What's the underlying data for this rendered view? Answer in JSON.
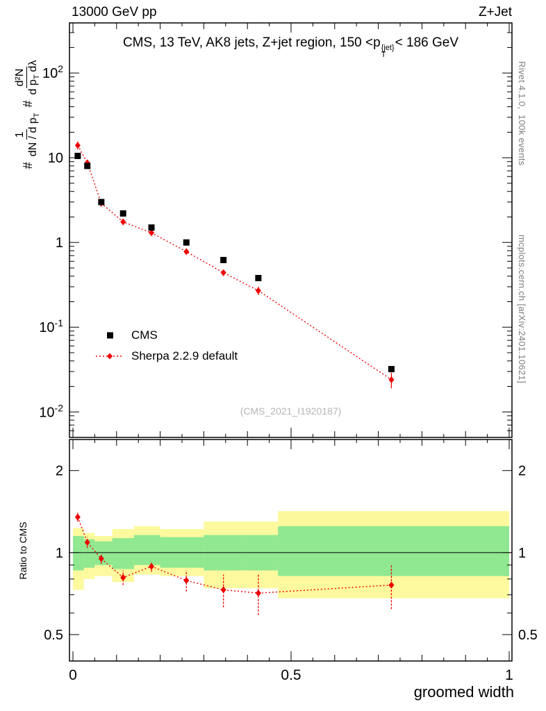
{
  "header": {
    "left": "13000 GeV pp",
    "right": "Z+Jet"
  },
  "main_panel": {
    "title": {
      "pre": "CMS, 13 TeV, AK8 jets, Z+jet region, 150 <p",
      "sup": "{jet}",
      "sub": "T",
      "post": "< 186 GeV"
    },
    "ylabel": {
      "hash1": "#",
      "f1_num": "1",
      "f1_den_pre": "dN / d p",
      "f1_den_sub": "T",
      "hash2": "#",
      "f2_num": "d²N",
      "f2_den_pre": "d p",
      "f2_den_sub": "T",
      "f2_den_post": "dλ"
    },
    "watermark": "(CMS_2021_I1920187)",
    "legend": [
      {
        "label": "CMS",
        "marker": "black-square"
      },
      {
        "label": "Sherpa 2.2.9 default",
        "marker": "red-diamond-dotted-line"
      }
    ]
  },
  "ratio_panel": {
    "ylabel": "Ratio to CMS"
  },
  "xaxis": {
    "label": "groomed width"
  },
  "side_notes": {
    "top": "Rivet 4.1.0,  100k events",
    "bottom": "mcplots.cern.ch [arXiv:2401.10621]"
  },
  "colors": {
    "cms": "#000000",
    "sherpa": "#ee0000",
    "band_yellow": "#fcf99e",
    "band_green": "#90e890"
  },
  "chart_data": {
    "type": "line",
    "title": "CMS, 13 TeV, AK8 jets, Z+jet region, 150 < pT^{jet} < 186 GeV",
    "xlabel": "groomed width",
    "xlim": [
      0,
      1
    ],
    "xticks": [
      {
        "v": 0,
        "label": "0"
      },
      {
        "v": 0.5,
        "label": "0.5"
      },
      {
        "v": 1,
        "label": "1"
      }
    ],
    "main": {
      "yscale": "log",
      "ylim": [
        0.005,
        390
      ],
      "yticks": [
        {
          "v": 100,
          "base": "10",
          "exp": "2"
        },
        {
          "v": 10,
          "base": "10",
          "exp": ""
        },
        {
          "v": 1,
          "base": "1",
          "exp": ""
        },
        {
          "v": 0.1,
          "base": "10",
          "exp": "-1"
        },
        {
          "v": 0.01,
          "base": "10",
          "exp": "-2"
        }
      ],
      "series": [
        {
          "name": "CMS",
          "marker": "square",
          "color": "#000000",
          "x": [
            0.011,
            0.033,
            0.065,
            0.115,
            0.18,
            0.26,
            0.345,
            0.425,
            0.73
          ],
          "y": [
            10.5,
            8.0,
            3.0,
            2.2,
            1.5,
            1.0,
            0.62,
            0.38,
            0.032
          ]
        },
        {
          "name": "Sherpa 2.2.9 default",
          "marker": "diamond",
          "color": "#ee0000",
          "linestyle": "dotted",
          "x": [
            0.011,
            0.033,
            0.065,
            0.115,
            0.18,
            0.26,
            0.345,
            0.425,
            0.73
          ],
          "y": [
            14,
            8.7,
            2.9,
            1.75,
            1.3,
            0.78,
            0.44,
            0.27,
            0.024
          ],
          "yerr": [
            1.5,
            0.6,
            0.25,
            0.15,
            0.09,
            0.06,
            0.035,
            0.03,
            0.005
          ]
        }
      ]
    },
    "ratio": {
      "ylabel": "Ratio to CMS",
      "yscale": "log",
      "ylim": [
        0.4,
        2.6
      ],
      "yticks": [
        {
          "v": 2,
          "label": "2"
        },
        {
          "v": 1,
          "label": "1"
        },
        {
          "v": 0.5,
          "label": "0.5"
        }
      ],
      "points": {
        "name": "Sherpa/CMS",
        "color": "#ee0000",
        "x": [
          0.011,
          0.033,
          0.065,
          0.115,
          0.18,
          0.26,
          0.345,
          0.425,
          0.73
        ],
        "y": [
          1.35,
          1.09,
          0.95,
          0.81,
          0.89,
          0.79,
          0.73,
          0.71,
          0.76
        ],
        "yerr": [
          0.05,
          0.05,
          0.04,
          0.05,
          0.04,
          0.07,
          0.1,
          0.12,
          0.14
        ]
      },
      "bands": [
        {
          "x0": 0.0,
          "x1": 0.025,
          "yellow": [
            0.73,
            1.23
          ],
          "green": [
            0.86,
            1.15
          ]
        },
        {
          "x0": 0.025,
          "x1": 0.05,
          "yellow": [
            0.8,
            1.18
          ],
          "green": [
            0.88,
            1.12
          ]
        },
        {
          "x0": 0.05,
          "x1": 0.09,
          "yellow": [
            0.82,
            1.15
          ],
          "green": [
            0.9,
            1.1
          ]
        },
        {
          "x0": 0.09,
          "x1": 0.14,
          "yellow": [
            0.78,
            1.22
          ],
          "green": [
            0.87,
            1.13
          ]
        },
        {
          "x0": 0.14,
          "x1": 0.2,
          "yellow": [
            0.83,
            1.25
          ],
          "green": [
            0.9,
            1.16
          ]
        },
        {
          "x0": 0.2,
          "x1": 0.3,
          "yellow": [
            0.82,
            1.22
          ],
          "green": [
            0.88,
            1.14
          ]
        },
        {
          "x0": 0.3,
          "x1": 0.39,
          "yellow": [
            0.74,
            1.3
          ],
          "green": [
            0.86,
            1.16
          ]
        },
        {
          "x0": 0.39,
          "x1": 0.47,
          "yellow": [
            0.74,
            1.3
          ],
          "green": [
            0.86,
            1.16
          ]
        },
        {
          "x0": 0.47,
          "x1": 1.0,
          "yellow": [
            0.68,
            1.42
          ],
          "green": [
            0.82,
            1.25
          ]
        }
      ]
    }
  }
}
